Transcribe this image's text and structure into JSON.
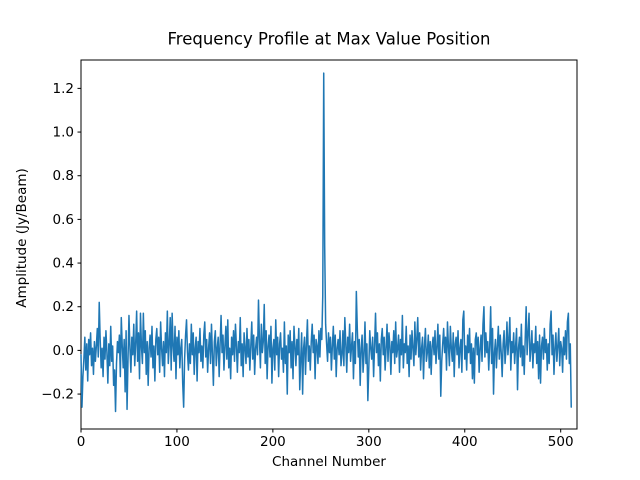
{
  "figure": {
    "background": "#ffffff"
  },
  "chart_data": {
    "type": "line",
    "title": "Frequency Profile at Max Value Position",
    "xlabel": "Channel Number",
    "ylabel": "Amplitude (Jy/Beam)",
    "line_color": "#1f77b4",
    "grid": false,
    "legend": "none",
    "xlim": [
      0,
      517
    ],
    "ylim": [
      -0.36,
      1.33
    ],
    "xticks": [
      0,
      100,
      200,
      300,
      400,
      500
    ],
    "xticklabels": [
      "0",
      "100",
      "200",
      "300",
      "400",
      "500"
    ],
    "yticks": [
      -0.2,
      0.0,
      0.2,
      0.4,
      0.6,
      0.8,
      1.0,
      1.2
    ],
    "yticklabels": [
      "−0.2",
      "0.0",
      "0.2",
      "0.4",
      "0.6",
      "0.8",
      "1.0",
      "1.2"
    ],
    "x_start": 0,
    "x_step": 1,
    "n_points": 512,
    "peak": {
      "channel": 253,
      "value": 1.27
    },
    "noise_range": [
      -0.28,
      0.27
    ],
    "values": [
      -0.02,
      -0.26,
      -0.12,
      -0.04,
      0.06,
      -0.09,
      0.03,
      -0.14,
      0.05,
      -0.02,
      0.08,
      -0.07,
      0.01,
      -0.11,
      0.04,
      -0.05,
      0.02,
      0.1,
      -0.03,
      0.22,
      0.05,
      -0.08,
      0.01,
      -0.12,
      0.06,
      -0.04,
      0.09,
      -0.01,
      -0.15,
      0.03,
      -0.07,
      0.11,
      -0.05,
      0.02,
      -0.16,
      -0.09,
      -0.28,
      -0.06,
      0.04,
      -0.01,
      0.07,
      -0.12,
      0.15,
      0.02,
      -0.08,
      0.05,
      -0.19,
      0.09,
      -0.27,
      -0.04,
      0.16,
      0.01,
      -0.1,
      0.06,
      -0.02,
      0.12,
      -0.07,
      0.03,
      0.18,
      -0.05,
      0.08,
      -0.13,
      0.17,
      0.02,
      -0.06,
      0.17,
      -0.01,
      0.09,
      -0.11,
      0.04,
      -0.16,
      0.01,
      0.07,
      -0.03,
      0.11,
      -0.08,
      0.02,
      -0.14,
      0.05,
      0.1,
      -0.02,
      0.06,
      -0.1,
      0.13,
      0.01,
      -0.07,
      0.04,
      -0.12,
      0.08,
      -0.01,
      0.18,
      -0.06,
      0.03,
      0.15,
      -0.09,
      0.17,
      0.02,
      -0.05,
      0.11,
      -0.13,
      0.06,
      -0.02,
      0.09,
      -0.08,
      0.01,
      0.05,
      -0.15,
      -0.26,
      -0.04,
      0.07,
      0.14,
      -0.01,
      -0.09,
      0.03,
      -0.06,
      0.12,
      -0.02,
      0.08,
      -0.11,
      0.01,
      0.06,
      -0.14,
      0.04,
      -0.01,
      0.1,
      -0.05,
      0.02,
      -0.08,
      0.07,
      0.13,
      -0.03,
      0.05,
      -0.1,
      0.01,
      0.08,
      -0.06,
      0.12,
      -0.02,
      -0.16,
      0.04,
      0.09,
      -0.07,
      0.01,
      0.06,
      -0.12,
      0.03,
      0.16,
      -0.01,
      0.07,
      -0.09,
      0.02,
      0.11,
      -0.04,
      0.14,
      -0.08,
      0.01,
      -0.13,
      0.06,
      -0.02,
      0.09,
      -0.05,
      0.12,
      0.02,
      -0.1,
      0.04,
      -0.01,
      0.15,
      -0.07,
      0.03,
      -0.12,
      0.08,
      0.01,
      -0.06,
      0.1,
      -0.03,
      0.05,
      -0.09,
      0.02,
      0.13,
      -0.04,
      0.07,
      -0.11,
      0.01,
      0.06,
      -0.02,
      0.23,
      0.05,
      -0.08,
      0.12,
      -0.01,
      0.04,
      0.21,
      -0.06,
      0.09,
      -0.13,
      0.02,
      0.07,
      -0.03,
      0.11,
      -0.15,
      0.01,
      0.05,
      -0.09,
      0.14,
      -0.02,
      0.06,
      -0.12,
      0.03,
      0.08,
      -0.04,
      0.01,
      -0.1,
      0.13,
      -0.06,
      0.02,
      -0.2,
      0.07,
      -0.01,
      0.09,
      -0.08,
      0.04,
      -0.13,
      0.11,
      0.02,
      -0.07,
      0.05,
      -0.02,
      0.1,
      -0.18,
      -0.04,
      0.08,
      -0.2,
      0.01,
      0.06,
      -0.11,
      0.03,
      0.14,
      -0.05,
      0.02,
      -0.09,
      0.04,
      0.12,
      -0.01,
      0.07,
      -0.13,
      0.05,
      0.02,
      -0.06,
      0.09,
      -0.03,
      0.1,
      0.05,
      0.25,
      1.27,
      0.48,
      0.12,
      0.03,
      -0.05,
      0.08,
      -0.01,
      0.06,
      -0.09,
      0.02,
      0.11,
      -0.04,
      0.07,
      -0.12,
      0.01,
      0.05,
      -0.02,
      0.09,
      -0.07,
      -0.02,
      0.09,
      -0.07,
      0.15,
      0.03,
      -0.1,
      0.06,
      -0.01,
      0.12,
      -0.05,
      0.02,
      0.08,
      -0.13,
      0.04,
      -0.06,
      0.27,
      0.1,
      -0.03,
      0.05,
      -0.16,
      0.01,
      0.07,
      -0.1,
      -0.02,
      0.13,
      -0.06,
      0.03,
      -0.23,
      -0.08,
      0.09,
      0.01,
      -0.04,
      0.06,
      -0.12,
      0.02,
      0.17,
      -0.01,
      0.08,
      -0.07,
      0.03,
      -0.14,
      0.05,
      0.1,
      -0.02,
      0.06,
      -0.09,
      0.01,
      0.12,
      -0.05,
      0.08,
      0.02,
      -0.11,
      0.04,
      -0.01,
      0.09,
      -0.06,
      0.13,
      -0.03,
      0.01,
      0.07,
      -0.1,
      0.05,
      -0.02,
      0.16,
      -0.08,
      0.03,
      -0.01,
      0.11,
      -0.06,
      0.02,
      -0.12,
      0.07,
      -0.04,
      0.09,
      0.01,
      -0.07,
      0.13,
      -0.02,
      0.05,
      0.15,
      -0.03,
      0.08,
      -0.09,
      0.01,
      0.06,
      -0.13,
      0.02,
      0.1,
      -0.05,
      -0.01,
      0.07,
      -0.08,
      0.04,
      -0.11,
      0.02,
      0.06,
      -0.02,
      0.09,
      -0.06,
      0.01,
      0.12,
      -0.04,
      0.07,
      -0.21,
      -0.05,
      0.03,
      0.1,
      -0.01,
      0.06,
      -0.09,
      0.13,
      0.02,
      -0.07,
      0.11,
      0.01,
      -0.05,
      0.08,
      -0.12,
      0.03,
      0.06,
      -0.02,
      0.09,
      -0.08,
      0.01,
      0.05,
      -0.1,
      0.14,
      0.18,
      -0.04,
      0.02,
      -0.09,
      0.07,
      -0.01,
      0.1,
      -0.06,
      0.03,
      -0.13,
      0.01,
      -0.15,
      0.05,
      0.08,
      -0.02,
      0.06,
      -0.1,
      0.01,
      0.07,
      -0.05,
      0.12,
      0.2,
      -0.03,
      0.08,
      -0.01,
      0.04,
      -0.09,
      0.02,
      0.2,
      -0.06,
      0.1,
      -0.2,
      -0.01,
      0.05,
      -0.08,
      0.02,
      0.11,
      -0.04,
      0.07,
      -0.01,
      -0.12,
      0.03,
      0.09,
      -0.06,
      0.01,
      0.13,
      -0.02,
      0.05,
      0.15,
      -0.09,
      0.04,
      -0.01,
      0.08,
      -0.06,
      0.02,
      0.1,
      -0.18,
      0.01,
      0.06,
      -0.03,
      0.12,
      -0.07,
      0.02,
      -0.11,
      0.05,
      0.2,
      -0.02,
      0.08,
      0.17,
      -0.05,
      0.01,
      0.09,
      -0.08,
      0.03,
      -0.01,
      0.11,
      -0.06,
      0.04,
      -0.13,
      0.07,
      -0.15,
      0.02,
      0.06,
      -0.04,
      0.1,
      -0.01,
      0.05,
      -0.09,
      0.03,
      -0.06,
      0.12,
      0.18,
      -0.02,
      0.07,
      -0.11,
      0.01,
      0.08,
      -0.05,
      0.02,
      0.1,
      -0.07,
      0.04,
      0.01,
      -0.1,
      0.06,
      -0.02,
      0.09,
      -0.04,
      0.13,
      0.17,
      -0.06,
      0.03,
      -0.26
    ]
  }
}
